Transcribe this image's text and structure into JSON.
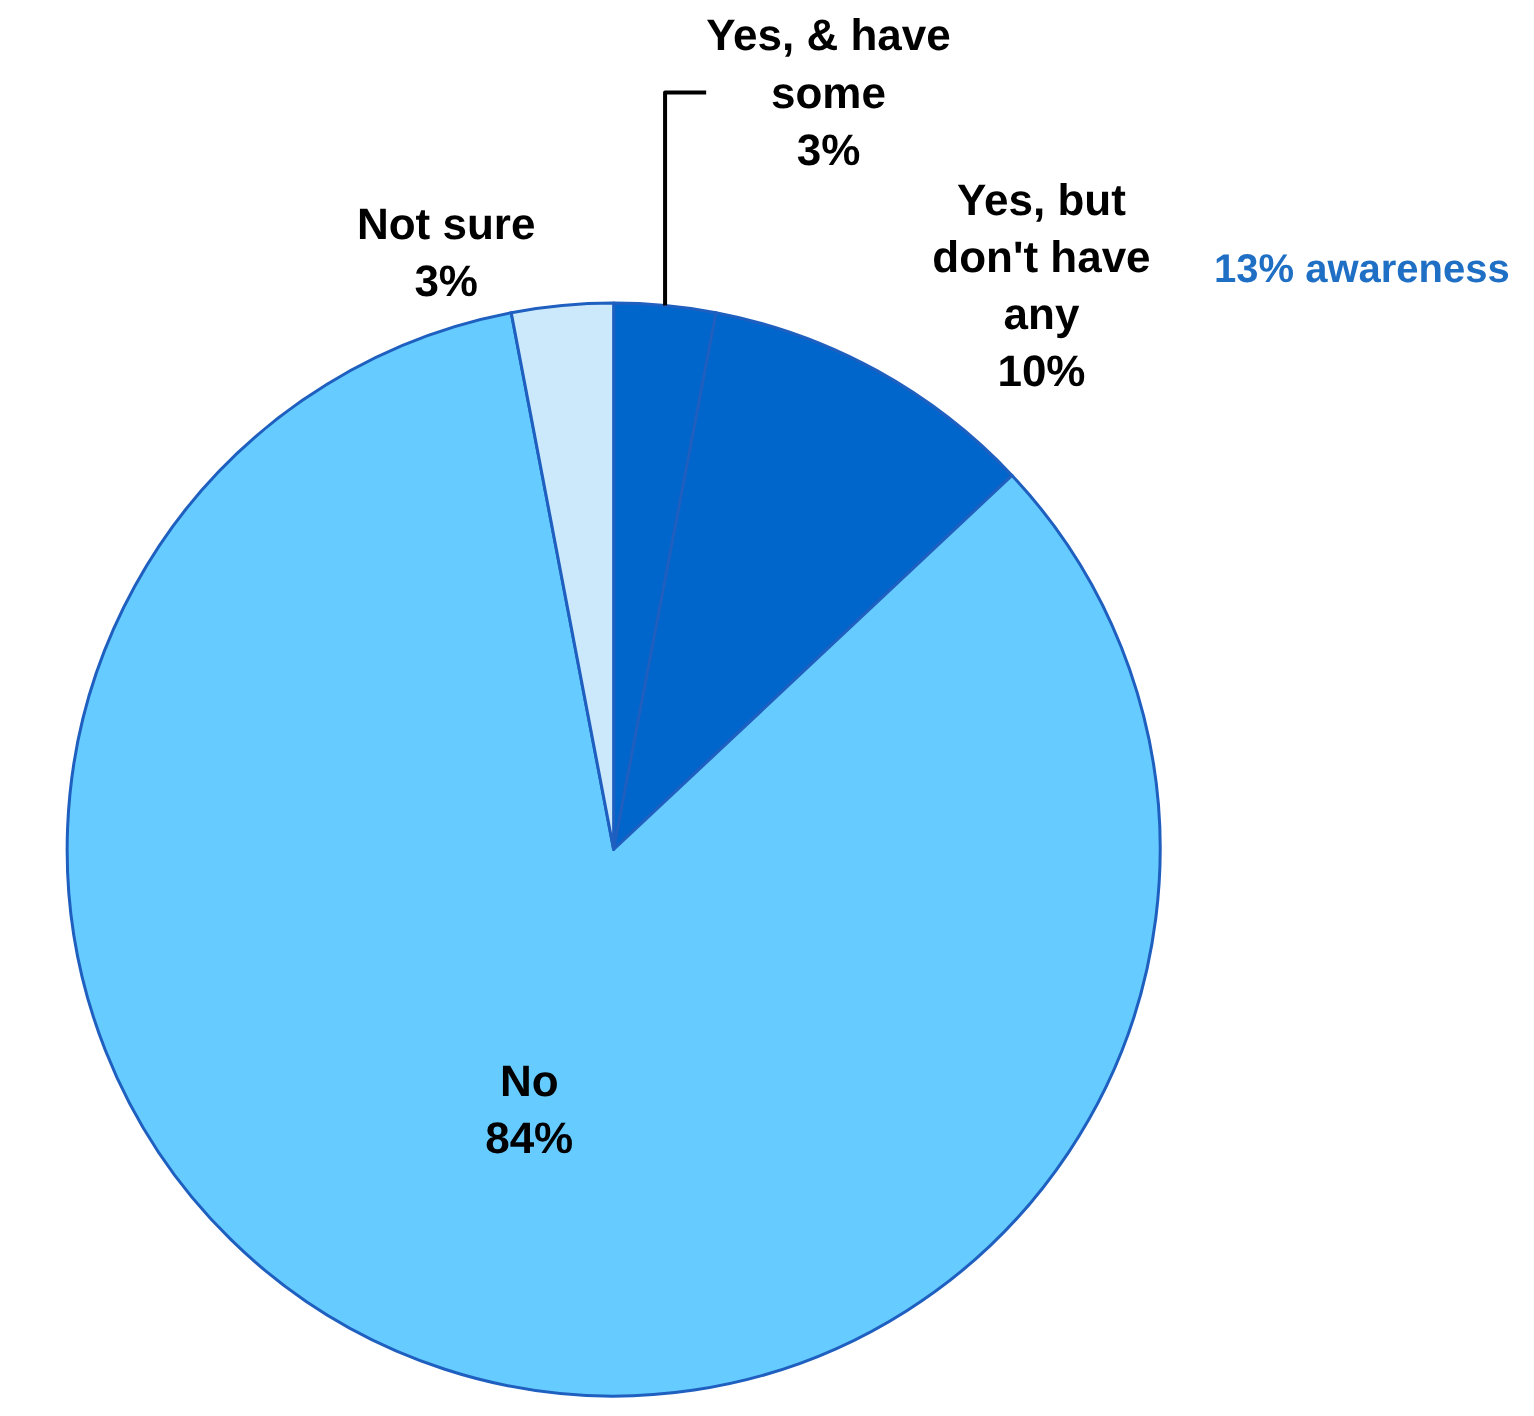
{
  "chart_data": {
    "type": "pie",
    "categories": [
      "Yes, & have some",
      "Yes, but don't have any",
      "No",
      "Not sure"
    ],
    "values": [
      3,
      10,
      84,
      3
    ],
    "colors": [
      "#0066cc",
      "#0066cc",
      "#66ccff",
      "#cce9fb"
    ],
    "value_labels": [
      "3%",
      "10%",
      "84%",
      "3%"
    ],
    "legend": false,
    "annotations": [
      "13% awareness"
    ]
  }
}
